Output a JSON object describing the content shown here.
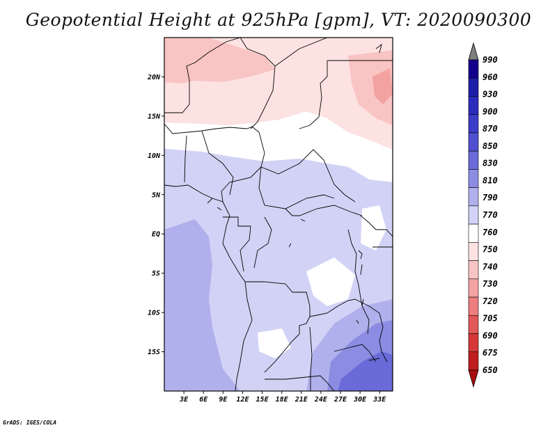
{
  "title": "Geopotential Height at 925hPa [gpm], VT: 2020090300",
  "credit": "GrADS: IGES/COLA",
  "map": {
    "lon_range": [
      0,
      35
    ],
    "lat_range": [
      -20,
      25
    ],
    "lat_ticks": [
      {
        "value": 20,
        "label": "20N"
      },
      {
        "value": 15,
        "label": "15N"
      },
      {
        "value": 10,
        "label": "10N"
      },
      {
        "value": 5,
        "label": "5N"
      },
      {
        "value": 0,
        "label": "EQ"
      },
      {
        "value": -5,
        "label": "5S"
      },
      {
        "value": -10,
        "label": "10S"
      },
      {
        "value": -15,
        "label": "15S"
      }
    ],
    "lon_ticks": [
      {
        "value": 3,
        "label": "3E"
      },
      {
        "value": 6,
        "label": "6E"
      },
      {
        "value": 9,
        "label": "9E"
      },
      {
        "value": 12,
        "label": "12E"
      },
      {
        "value": 15,
        "label": "15E"
      },
      {
        "value": 18,
        "label": "18E"
      },
      {
        "value": 21,
        "label": "21E"
      },
      {
        "value": 24,
        "label": "24E"
      },
      {
        "value": 27,
        "label": "27E"
      },
      {
        "value": 30,
        "label": "30E"
      },
      {
        "value": 33,
        "label": "33E"
      }
    ]
  },
  "colorbar": {
    "levels": [
      "990",
      "960",
      "930",
      "900",
      "870",
      "850",
      "830",
      "810",
      "790",
      "770",
      "760",
      "750",
      "740",
      "730",
      "720",
      "705",
      "690",
      "675",
      "650"
    ],
    "colors": [
      "#7e7e7e",
      "#14008c",
      "#1e1ea8",
      "#2b2bbc",
      "#3c3cc8",
      "#5050d0",
      "#6a6ad8",
      "#8c8ce2",
      "#b0b0ec",
      "#d2d2f6",
      "#ffffff",
      "#fde2e2",
      "#f9c4c4",
      "#f3a2a2",
      "#ec7e7e",
      "#e25858",
      "#d63838",
      "#c01e1e",
      "#a80e0e"
    ]
  },
  "colors": {
    "pink_light": "#fde2e2",
    "pink_mid": "#f9c4c4",
    "pink_deep": "#f3a2a2",
    "white_band": "#ffffff",
    "lav_light": "#e8e8fc",
    "lav": "#d2d2f6",
    "blue_light": "#b0b0ec",
    "blue_mid": "#8c8ce2",
    "blue_deep": "#6a6ad8"
  }
}
